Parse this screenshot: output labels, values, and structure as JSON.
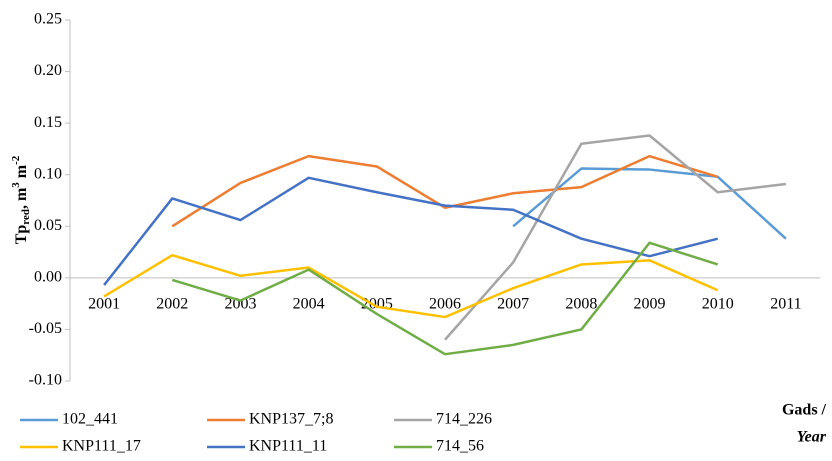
{
  "chart_data": {
    "type": "line",
    "y_label": {
      "base": "Tp",
      "sub": "red",
      "unit1": ", m",
      "exp1": "3",
      "unit2": " m",
      "exp2": "-2"
    },
    "x_label": [
      "Gads /",
      "Year"
    ],
    "categories": [
      "2001",
      "2002",
      "2003",
      "2004",
      "2005",
      "2006",
      "2007",
      "2008",
      "2009",
      "2010",
      "2011"
    ],
    "series": [
      {
        "name": "102_441",
        "color": "#5b9bd5",
        "values": [
          null,
          null,
          null,
          null,
          null,
          null,
          0.05,
          0.106,
          0.105,
          0.098,
          0.038
        ]
      },
      {
        "name": "KNP137_7;8",
        "color": "#ed7d31",
        "values": [
          null,
          0.05,
          0.092,
          0.118,
          0.108,
          0.068,
          0.082,
          0.088,
          0.118,
          0.098,
          null
        ]
      },
      {
        "name": "714_226",
        "color": "#a5a5a5",
        "values": [
          null,
          null,
          null,
          null,
          null,
          -0.06,
          0.015,
          0.13,
          0.138,
          0.083,
          0.091
        ]
      },
      {
        "name": "KNP111_17",
        "color": "#ffc000",
        "values": [
          -0.018,
          0.022,
          0.002,
          0.01,
          -0.028,
          -0.038,
          -0.01,
          0.013,
          0.017,
          -0.012,
          null
        ]
      },
      {
        "name": "KNP111_11",
        "color": "#4472c4",
        "values": [
          -0.007,
          0.077,
          0.056,
          0.097,
          0.083,
          0.07,
          0.066,
          0.038,
          0.021,
          0.038,
          null
        ]
      },
      {
        "name": "714_56",
        "color": "#70ad47",
        "values": [
          null,
          -0.002,
          -0.022,
          0.008,
          -0.035,
          -0.074,
          -0.065,
          -0.05,
          0.034,
          0.013,
          null
        ]
      }
    ],
    "ylim": [
      -0.1,
      0.25
    ],
    "yticks": [
      {
        "value": -0.1,
        "label": "-0.10"
      },
      -0.05,
      {
        "value": 0,
        "label": "0.00"
      },
      0.05,
      {
        "value": 0.1,
        "label": "0.10"
      },
      0.15,
      {
        "value": 0.2,
        "label": "0.20"
      },
      0.25
    ],
    "grid": false,
    "legend": "bottom"
  }
}
